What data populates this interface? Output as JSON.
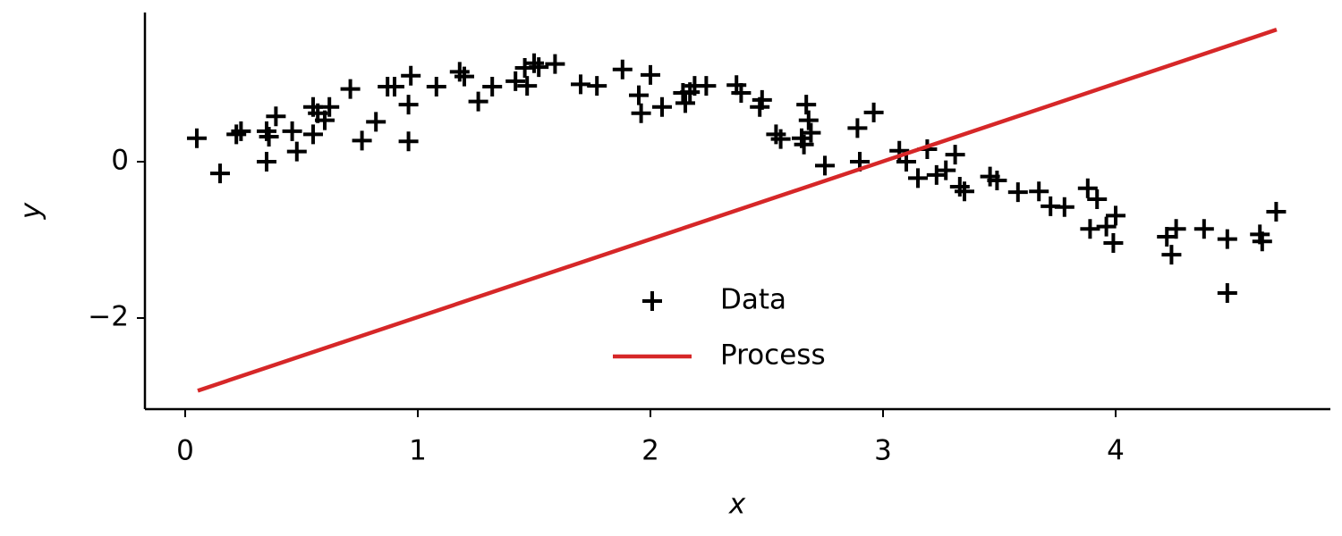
{
  "chart_data": {
    "type": "scatter",
    "x_label": "x",
    "y_label": "y",
    "xlim": [
      -0.173,
      4.923
    ],
    "ylim": [
      -3.166,
      1.909
    ],
    "xticks": [
      0,
      1,
      2,
      3,
      4
    ],
    "yticks": [
      {
        "value": -2,
        "label": "−2"
      },
      0
    ],
    "legend": "lower center",
    "series": [
      {
        "name": "Data",
        "type": "scatter",
        "color": "#000000",
        "x": [
          0.05,
          0.15,
          0.22,
          0.24,
          0.35,
          0.35,
          0.36,
          0.39,
          0.46,
          0.48,
          0.55,
          0.55,
          0.57,
          0.6,
          0.62,
          0.71,
          0.76,
          0.82,
          0.87,
          0.9,
          0.96,
          0.96,
          0.97,
          1.08,
          1.18,
          1.2,
          1.26,
          1.32,
          1.42,
          1.46,
          1.47,
          1.5,
          1.52,
          1.59,
          1.7,
          1.77,
          1.88,
          1.95,
          1.96,
          2.0,
          2.05,
          2.14,
          2.15,
          2.17,
          2.19,
          2.24,
          2.37,
          2.39,
          2.47,
          2.48,
          2.54,
          2.56,
          2.65,
          2.66,
          2.67,
          2.68,
          2.69,
          2.75,
          2.89,
          2.9,
          2.96,
          3.07,
          3.1,
          3.15,
          3.19,
          3.23,
          3.27,
          3.31,
          3.33,
          3.35,
          3.46,
          3.49,
          3.58,
          3.67,
          3.72,
          3.78,
          3.88,
          3.89,
          3.92,
          3.96,
          4.0,
          3.99,
          4.22,
          4.24,
          4.26,
          4.38,
          4.48,
          4.48,
          4.62,
          4.63,
          4.69
        ],
        "values": [
          0.3,
          -0.15,
          0.35,
          0.39,
          0.39,
          0.0,
          0.32,
          0.58,
          0.39,
          0.13,
          0.35,
          0.7,
          0.62,
          0.53,
          0.7,
          0.93,
          0.27,
          0.51,
          0.96,
          0.96,
          0.73,
          0.26,
          1.1,
          0.96,
          1.15,
          1.09,
          0.77,
          0.96,
          1.03,
          1.2,
          0.97,
          1.26,
          1.21,
          1.25,
          0.99,
          0.97,
          1.18,
          0.85,
          0.62,
          1.11,
          0.7,
          0.88,
          0.75,
          0.89,
          0.97,
          0.97,
          0.98,
          0.88,
          0.7,
          0.79,
          0.35,
          0.29,
          0.3,
          0.22,
          0.73,
          0.53,
          0.37,
          -0.05,
          0.43,
          0.0,
          0.63,
          0.14,
          0.0,
          -0.21,
          0.16,
          -0.17,
          -0.11,
          0.09,
          -0.32,
          -0.38,
          -0.19,
          -0.24,
          -0.39,
          -0.38,
          -0.57,
          -0.58,
          -0.34,
          -0.86,
          -0.48,
          -0.83,
          -0.69,
          -1.04,
          -0.96,
          -1.19,
          -0.86,
          -0.86,
          -0.99,
          -1.68,
          -0.93,
          -1.02,
          -0.64
        ]
      },
      {
        "name": "Process",
        "type": "line",
        "color": "#d62728",
        "x": [
          0.054,
          4.692
        ],
        "values": [
          -2.93,
          1.69
        ]
      }
    ]
  }
}
